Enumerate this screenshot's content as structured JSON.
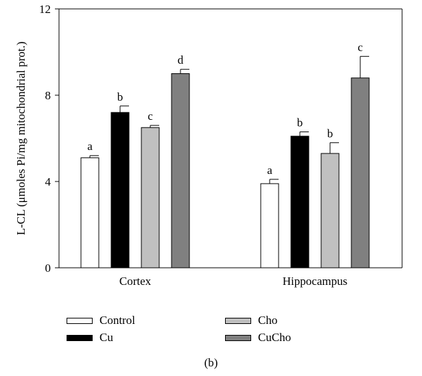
{
  "chart_data": {
    "type": "bar",
    "categories": [
      "Cortex",
      "Hippocampus"
    ],
    "series": [
      {
        "name": "Control",
        "color": "#ffffff",
        "values": [
          5.1,
          3.9
        ],
        "errors": [
          0.1,
          0.2
        ],
        "letters": [
          "a",
          "a"
        ]
      },
      {
        "name": "Cu",
        "color": "#000000",
        "values": [
          7.2,
          6.1
        ],
        "errors": [
          0.3,
          0.2
        ],
        "letters": [
          "b",
          "b"
        ]
      },
      {
        "name": "Cho",
        "color": "#c0c0c0",
        "values": [
          6.5,
          5.3
        ],
        "errors": [
          0.1,
          0.5
        ],
        "letters": [
          "c",
          "b"
        ]
      },
      {
        "name": "CuCho",
        "color": "#808080",
        "values": [
          9.0,
          8.8
        ],
        "errors": [
          0.2,
          1.0
        ],
        "letters": [
          "d",
          "c"
        ]
      }
    ],
    "ylabel": "L-CL (μmoles Pi/mg mitochondrial prot.)",
    "xlabel": "",
    "ylim": [
      0,
      12
    ],
    "yticks": [
      "0",
      "4",
      "8",
      "12"
    ],
    "grid": false,
    "legend_position": "bottom"
  },
  "legend": {
    "items": [
      "Control",
      "Cu",
      "Cho",
      "CuCho"
    ]
  },
  "caption": "(b)"
}
